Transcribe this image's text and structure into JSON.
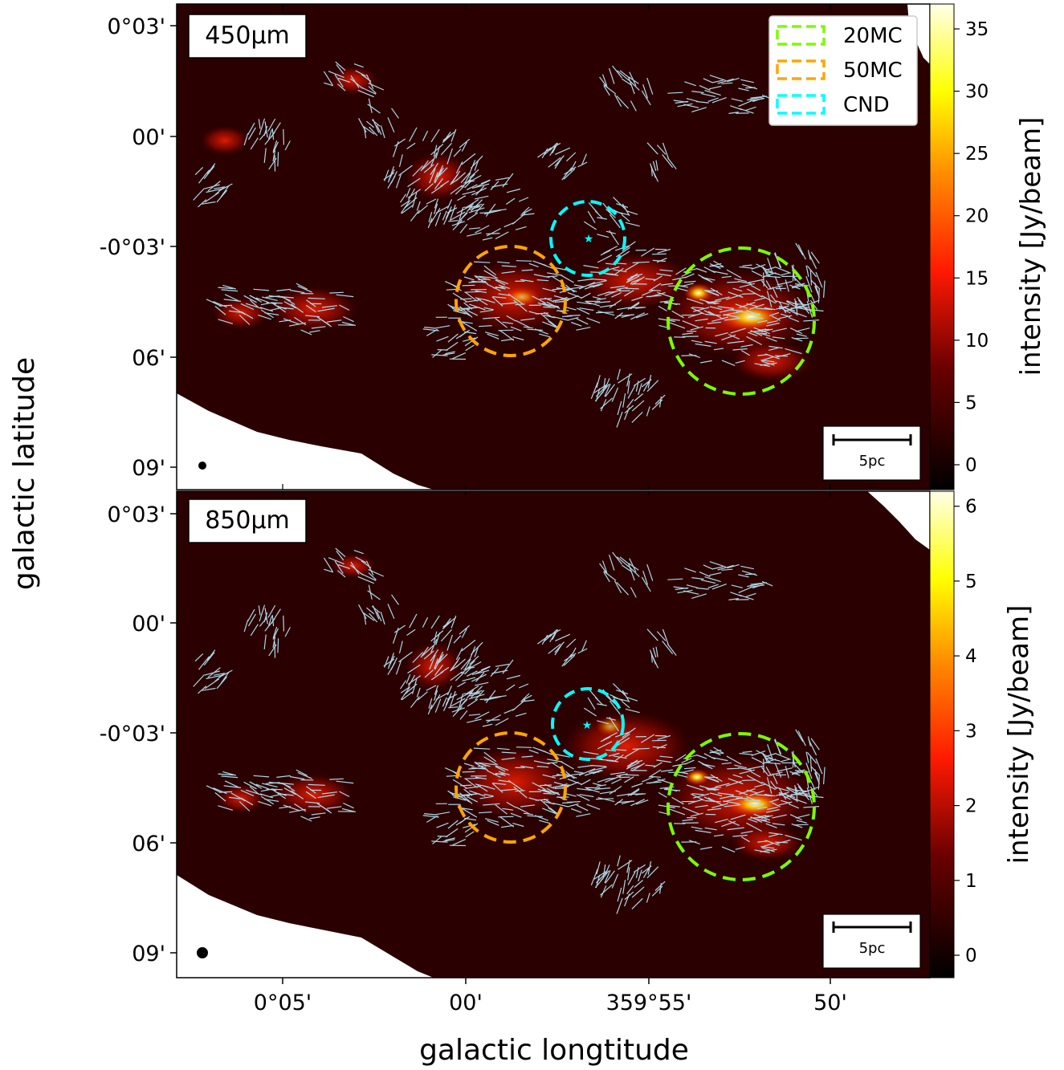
{
  "figure": {
    "xlabel": "galactic longtitude",
    "ylabel": "galactic latitude"
  },
  "chart_data": [
    {
      "type": "heatmap",
      "panel": "450um",
      "band_label": "450μm",
      "colorbar": {
        "label": "intensity [Jy/beam]",
        "range": [
          -2,
          37
        ],
        "ticks": [
          0,
          5,
          10,
          15,
          20,
          25,
          30,
          35
        ],
        "tick_labels": [
          "0",
          "5",
          "10",
          "15",
          "20",
          "25",
          "30",
          "35"
        ]
      },
      "y_ticks": [
        "0°03'",
        "00'",
        "-0°03'",
        "06'",
        "09'"
      ],
      "legend": {
        "placement": "upper right",
        "entries": [
          {
            "label": "20MC",
            "color": "#7cfc00"
          },
          {
            "label": "50MC",
            "color": "#ffa500"
          },
          {
            "label": "CND",
            "color": "#00ffff"
          }
        ]
      },
      "scale_bar": "5pc",
      "vector_color": "#add8e6"
    },
    {
      "type": "heatmap",
      "panel": "850um",
      "band_label": "850μm",
      "colorbar": {
        "label": "intensity [Jy/beam]",
        "range": [
          -0.3,
          6.2
        ],
        "ticks": [
          0,
          1,
          2,
          3,
          4,
          5,
          6
        ],
        "tick_labels": [
          "0",
          "1",
          "2",
          "3",
          "4",
          "5",
          "6"
        ]
      },
      "y_ticks": [
        "0°03'",
        "00'",
        "-0°03'",
        "06'",
        "09'"
      ],
      "x_ticks": [
        "0°05'",
        "00'",
        "359°55'",
        "50'"
      ],
      "legend": null,
      "scale_bar": "5pc",
      "vector_color": "#add8e6"
    }
  ]
}
